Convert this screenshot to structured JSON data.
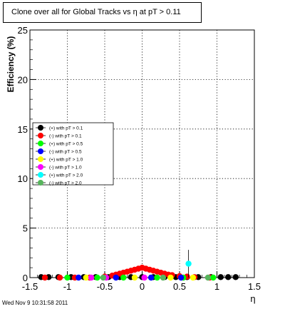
{
  "chart_data": {
    "type": "scatter",
    "title": "Clone  over all for Global Tracks vs η at pT > 0.11",
    "xlabel": "η",
    "ylabel": "Efficiency (%)",
    "xlim": [
      -1.5,
      1.5
    ],
    "ylim": [
      0,
      25
    ],
    "xticks": [
      -1.5,
      -1,
      -0.5,
      0,
      0.5,
      1,
      1.5
    ],
    "xtick_labels": [
      "-1.5",
      "-1",
      "-0.5",
      "0",
      "0.5",
      "1",
      "1.5"
    ],
    "yticks": [
      0,
      5,
      10,
      15,
      20,
      25
    ],
    "ytick_labels": [
      "0",
      "5",
      "10",
      "15",
      "20",
      "25"
    ],
    "grid": true,
    "legend_position": "middle-left",
    "series": [
      {
        "name": "(+) with pT > 0.1",
        "color": "#000000",
        "x": [
          -1.35,
          -1.25,
          -1.12,
          -0.95,
          -0.78,
          -0.62,
          -0.45,
          -0.3,
          -0.15,
          0.0,
          0.15,
          0.3,
          0.45,
          0.6,
          0.75,
          0.92,
          1.05,
          1.15,
          1.25
        ],
        "y": [
          0.05,
          0.05,
          0.05,
          0.05,
          0.05,
          0.05,
          0.05,
          0.05,
          0.05,
          0.05,
          0.05,
          0.05,
          0.05,
          0.05,
          0.05,
          0.05,
          0.05,
          0.05,
          0.05
        ]
      },
      {
        "name": "(-) with pT > 0.1",
        "color": "#ff0000",
        "x": [
          -1.3,
          -1.1,
          -0.9,
          -0.7,
          -0.5,
          -0.4,
          -0.35,
          -0.3,
          -0.25,
          -0.2,
          -0.15,
          -0.1,
          -0.05,
          0.0,
          0.05,
          0.1,
          0.15,
          0.2,
          0.25,
          0.3,
          0.35,
          0.4,
          0.5,
          0.6,
          0.7,
          0.9
        ],
        "y": [
          0.0,
          0.0,
          0.0,
          0.0,
          0.1,
          0.2,
          0.3,
          0.4,
          0.5,
          0.6,
          0.7,
          0.8,
          0.9,
          1.0,
          0.9,
          0.8,
          0.7,
          0.6,
          0.5,
          0.4,
          0.3,
          0.25,
          0.15,
          0.1,
          0.05,
          0.0
        ]
      },
      {
        "name": "(+) with pT > 0.5",
        "color": "#00ff00",
        "x": [
          -1.0,
          -0.6,
          -0.25,
          0.2,
          0.55,
          0.95
        ],
        "y": [
          0.0,
          0.0,
          0.0,
          0.0,
          0.0,
          0.0
        ]
      },
      {
        "name": "(-) with pT > 0.5",
        "color": "#0000ff",
        "x": [
          -0.85,
          -0.35,
          0.12,
          0.52
        ],
        "y": [
          0.0,
          0.0,
          0.0,
          0.0
        ]
      },
      {
        "name": "(+) with pT > 1.0",
        "color": "#ffff00",
        "x": [
          -0.75,
          -0.1,
          0.38,
          0.68
        ],
        "y": [
          0.0,
          0.0,
          0.0,
          0.0
        ]
      },
      {
        "name": "(-) with pT > 1.0",
        "color": "#ff00ff",
        "x": [
          -0.68,
          -0.48,
          0.03
        ],
        "y": [
          0.0,
          0.0,
          0.0
        ]
      },
      {
        "name": "(+) with pT > 2.0",
        "color": "#00ffff",
        "x": [
          0.62
        ],
        "y": [
          1.4
        ],
        "yerr": [
          1.4
        ]
      },
      {
        "name": "(-) with pT > 2.0",
        "color": "#57b45c",
        "x": [
          -0.52,
          0.28,
          0.88
        ],
        "y": [
          0.0,
          0.0,
          0.0
        ]
      }
    ]
  },
  "footer": {
    "timestamp": "Wed Nov  9 10:31:58 2011"
  }
}
